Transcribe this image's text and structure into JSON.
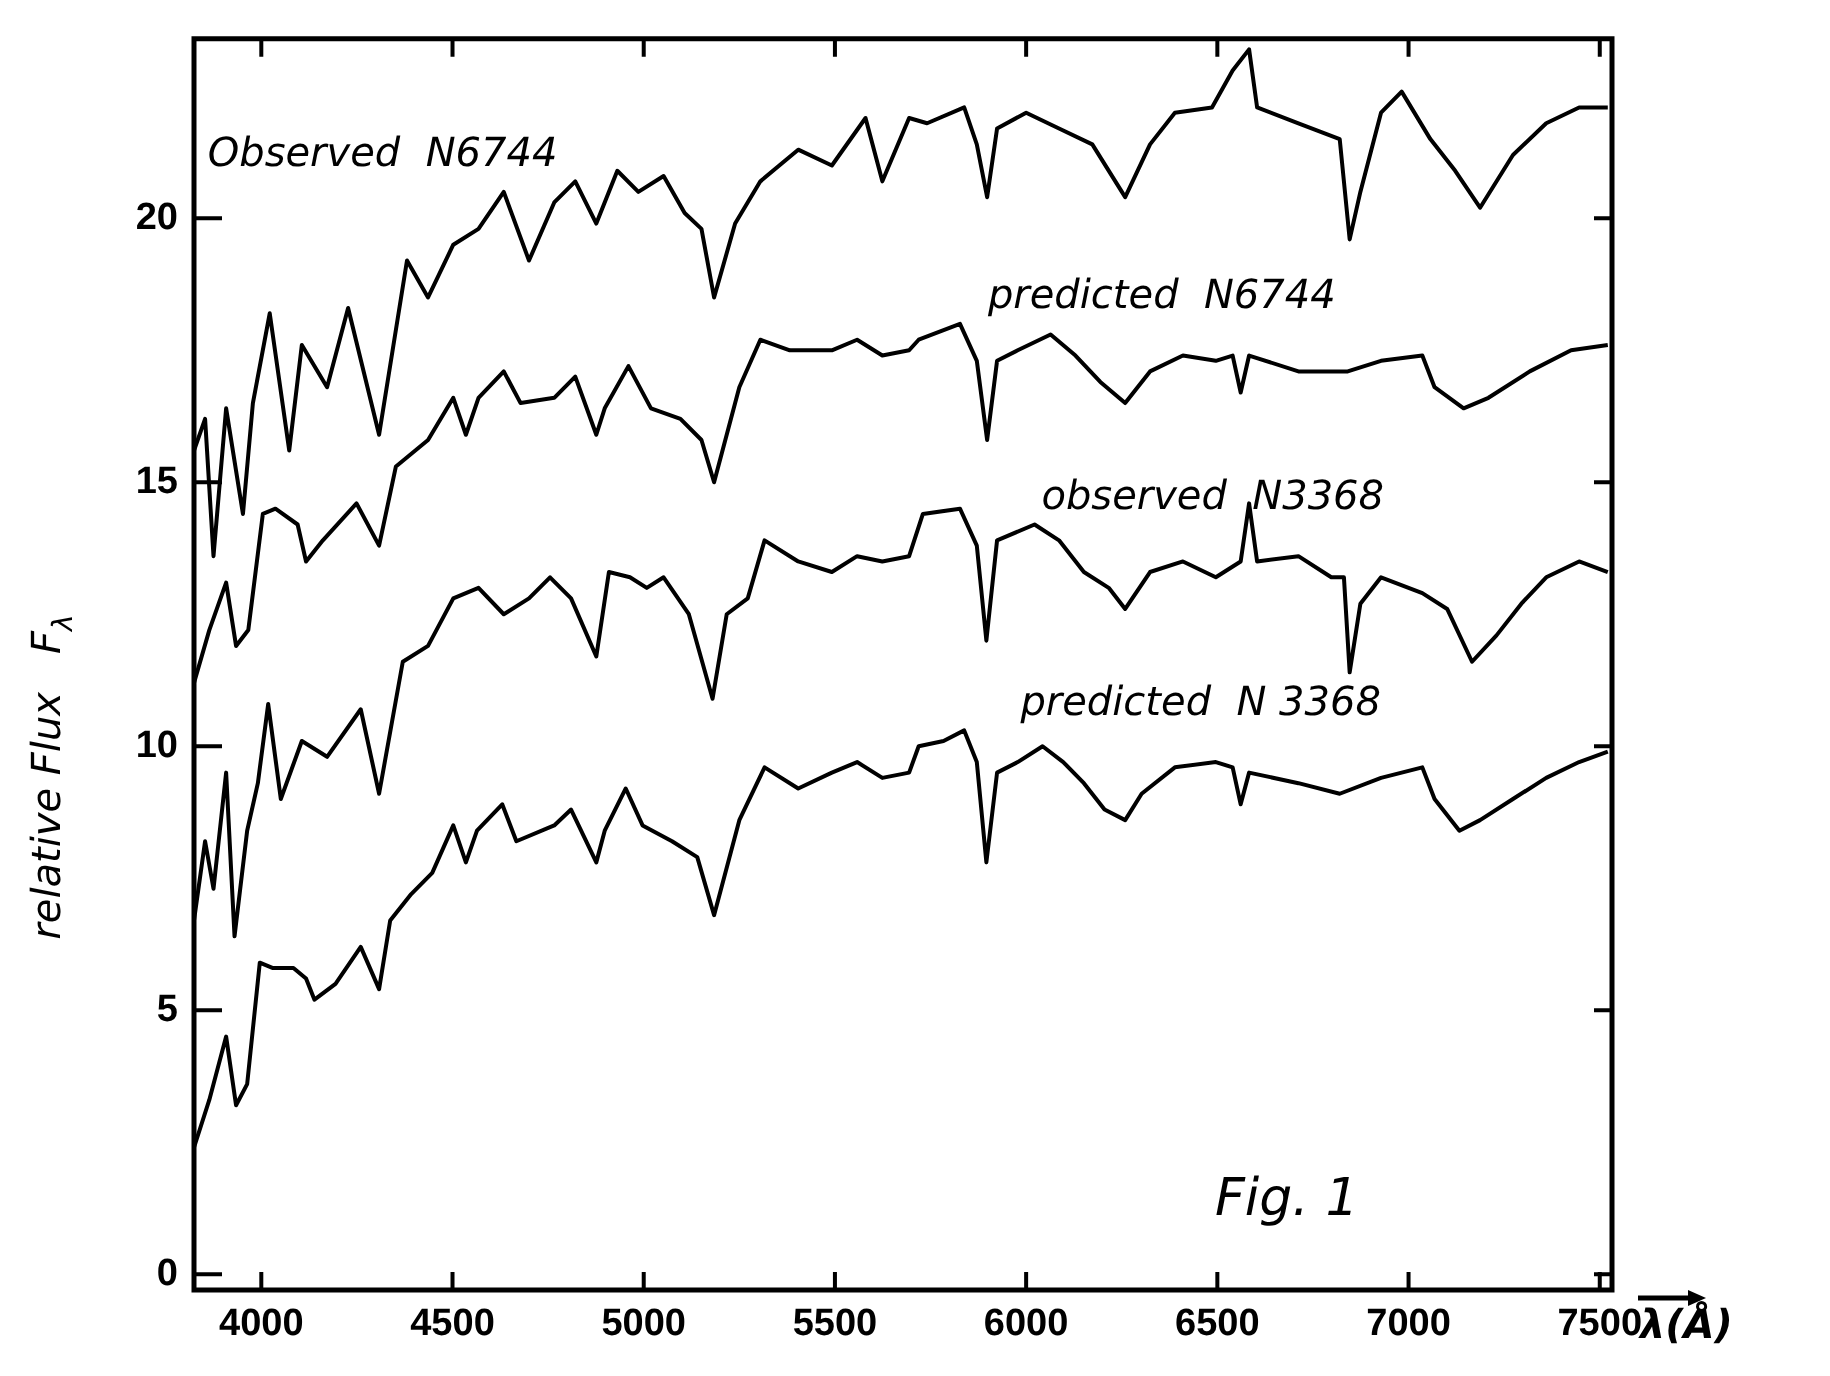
{
  "chart_data": {
    "type": "line",
    "xlabel": "λ(Å)",
    "ylabel": "relative Flux   F$_{λ}$",
    "xlim": [
      3824,
      7532
    ],
    "ylim": [
      -0.3,
      23.4
    ],
    "xticks": [
      4000,
      4500,
      5000,
      5500,
      6000,
      6500,
      7000,
      7500
    ],
    "yticks": [
      0,
      5,
      10,
      15,
      20
    ],
    "annotations": [
      "Fig. 1"
    ],
    "marker": "none",
    "legend": false,
    "series": [
      {
        "name": "Observed  N6744",
        "color": "#000000",
        "x": [
          3824,
          3853,
          3875,
          3908,
          3952,
          3978,
          4022,
          4073,
          4106,
          4172,
          4227,
          4308,
          4381,
          4436,
          4502,
          4568,
          4634,
          4700,
          4766,
          4821,
          4876,
          4931,
          4986,
          5052,
          5107,
          5151,
          5184,
          5239,
          5305,
          5404,
          5492,
          5580,
          5624,
          5694,
          5741,
          5838,
          5871,
          5898,
          5924,
          6000,
          6086,
          6173,
          6259,
          6324,
          6389,
          6486,
          6540,
          6583,
          6604,
          6712,
          6820,
          6846,
          6874,
          6928,
          6982,
          7057,
          7122,
          7187,
          7273,
          7360,
          7446,
          7521
        ],
        "values": [
          15.6,
          16.2,
          13.6,
          16.4,
          14.4,
          16.5,
          18.2,
          15.6,
          17.6,
          16.8,
          18.3,
          15.9,
          19.2,
          18.5,
          19.5,
          19.8,
          20.5,
          19.2,
          20.3,
          20.7,
          19.9,
          20.9,
          20.5,
          20.8,
          20.1,
          19.8,
          18.5,
          19.9,
          20.7,
          21.3,
          21.0,
          21.9,
          20.7,
          21.9,
          21.8,
          22.1,
          21.4,
          20.4,
          21.7,
          22.0,
          21.7,
          21.4,
          20.4,
          21.4,
          22.0,
          22.1,
          22.8,
          23.2,
          22.1,
          21.8,
          21.5,
          19.6,
          20.5,
          22.0,
          22.4,
          21.5,
          20.9,
          20.2,
          21.2,
          21.8,
          22.1,
          22.1
        ]
      },
      {
        "name": "predicted  N6744",
        "color": "#000000",
        "x": [
          3824,
          3864,
          3908,
          3934,
          3966,
          4004,
          4037,
          4095,
          4117,
          4161,
          4249,
          4308,
          4352,
          4436,
          4502,
          4535,
          4568,
          4634,
          4678,
          4766,
          4821,
          4876,
          4898,
          4960,
          5019,
          5096,
          5151,
          5184,
          5250,
          5305,
          5382,
          5492,
          5558,
          5624,
          5694,
          5719,
          5827,
          5871,
          5898,
          5924,
          5978,
          6064,
          6129,
          6194,
          6259,
          6324,
          6410,
          6496,
          6540,
          6561,
          6583,
          6712,
          6841,
          6928,
          7036,
          7068,
          7144,
          7209,
          7317,
          7425,
          7521
        ],
        "values": [
          11.2,
          12.2,
          13.1,
          11.9,
          12.2,
          14.4,
          14.5,
          14.2,
          13.5,
          13.9,
          14.6,
          13.8,
          15.3,
          15.8,
          16.6,
          15.9,
          16.6,
          17.1,
          16.5,
          16.6,
          17.0,
          15.9,
          16.4,
          17.2,
          16.4,
          16.2,
          15.8,
          15.0,
          16.8,
          17.7,
          17.5,
          17.5,
          17.7,
          17.4,
          17.5,
          17.7,
          18.0,
          17.3,
          15.8,
          17.3,
          17.5,
          17.8,
          17.4,
          16.9,
          16.5,
          17.1,
          17.4,
          17.3,
          17.4,
          16.7,
          17.4,
          17.1,
          17.1,
          17.3,
          17.4,
          16.8,
          16.4,
          16.6,
          17.1,
          17.5,
          17.6
        ]
      },
      {
        "name": "observed  N3368",
        "color": "#000000",
        "x": [
          3824,
          3853,
          3875,
          3908,
          3930,
          3963,
          3991,
          4018,
          4051,
          4106,
          4172,
          4260,
          4308,
          4370,
          4436,
          4502,
          4568,
          4634,
          4700,
          4755,
          4810,
          4876,
          4909,
          4964,
          5008,
          5052,
          5118,
          5180,
          5217,
          5272,
          5316,
          5404,
          5492,
          5558,
          5624,
          5694,
          5730,
          5827,
          5871,
          5896,
          5924,
          6022,
          6086,
          6151,
          6216,
          6259,
          6324,
          6410,
          6496,
          6561,
          6583,
          6604,
          6712,
          6798,
          6831,
          6846,
          6874,
          6928,
          7036,
          7101,
          7166,
          7230,
          7295,
          7360,
          7446,
          7521
        ],
        "values": [
          6.7,
          8.2,
          7.3,
          9.5,
          6.4,
          8.4,
          9.3,
          10.8,
          9.0,
          10.1,
          9.8,
          10.7,
          9.1,
          11.6,
          11.9,
          12.8,
          13.0,
          12.5,
          12.8,
          13.2,
          12.8,
          11.7,
          13.3,
          13.2,
          13.0,
          13.2,
          12.5,
          10.9,
          12.5,
          12.8,
          13.9,
          13.5,
          13.3,
          13.6,
          13.5,
          13.6,
          14.4,
          14.5,
          13.8,
          12.0,
          13.9,
          14.2,
          13.9,
          13.3,
          13.0,
          12.6,
          13.3,
          13.5,
          13.2,
          13.5,
          14.6,
          13.5,
          13.6,
          13.2,
          13.2,
          11.4,
          12.7,
          13.2,
          12.9,
          12.6,
          11.6,
          12.1,
          12.7,
          13.2,
          13.5,
          13.3
        ]
      },
      {
        "name": "predicted  N 3368",
        "color": "#000000",
        "x": [
          3824,
          3864,
          3908,
          3934,
          3963,
          3996,
          4029,
          4084,
          4117,
          4139,
          4194,
          4260,
          4308,
          4337,
          4392,
          4447,
          4502,
          4535,
          4564,
          4630,
          4667,
          4766,
          4810,
          4876,
          4898,
          4953,
          4997,
          5074,
          5140,
          5184,
          5250,
          5316,
          5404,
          5492,
          5558,
          5624,
          5694,
          5719,
          5784,
          5838,
          5871,
          5896,
          5924,
          5978,
          6043,
          6097,
          6151,
          6205,
          6259,
          6302,
          6389,
          6496,
          6540,
          6561,
          6583,
          6712,
          6820,
          6928,
          7036,
          7068,
          7133,
          7187,
          7273,
          7360,
          7446,
          7521
        ],
        "values": [
          2.4,
          3.3,
          4.5,
          3.2,
          3.6,
          5.9,
          5.8,
          5.8,
          5.6,
          5.2,
          5.5,
          6.2,
          5.4,
          6.7,
          7.2,
          7.6,
          8.5,
          7.8,
          8.4,
          8.9,
          8.2,
          8.5,
          8.8,
          7.8,
          8.4,
          9.2,
          8.5,
          8.2,
          7.9,
          6.8,
          8.6,
          9.6,
          9.2,
          9.5,
          9.7,
          9.4,
          9.5,
          10.0,
          10.1,
          10.3,
          9.7,
          7.8,
          9.5,
          9.7,
          10.0,
          9.7,
          9.3,
          8.8,
          8.6,
          9.1,
          9.6,
          9.7,
          9.6,
          8.9,
          9.5,
          9.3,
          9.1,
          9.4,
          9.6,
          9.0,
          8.4,
          8.6,
          9.0,
          9.4,
          9.7,
          9.9
        ]
      }
    ]
  }
}
